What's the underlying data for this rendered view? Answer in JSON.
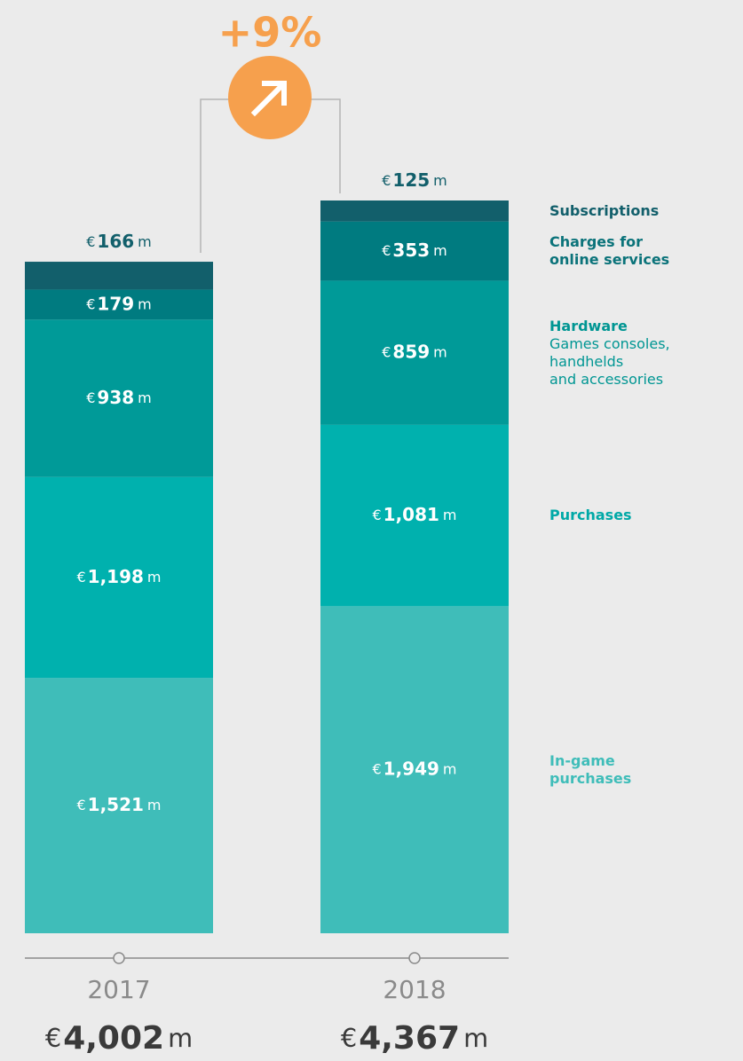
{
  "chart_data": {
    "type": "stacked_bar",
    "categories": [
      "2017",
      "2018"
    ],
    "currency": "€",
    "unit": "m",
    "change_label": "+9%",
    "series": [
      {
        "name": "In-game purchases",
        "color": "#3fbdb9",
        "text_color": "#3fbdb9",
        "values": [
          1521,
          1949
        ],
        "value_labels": [
          "1,521",
          "1,949"
        ]
      },
      {
        "name": "Purchases",
        "color": "#00b1ae",
        "text_color": "#00a9a7",
        "values": [
          1198,
          1081
        ],
        "value_labels": [
          "1,198",
          "1,081"
        ]
      },
      {
        "name": "Hardware",
        "description": [
          "Games consoles,",
          "handhelds",
          "and accessories"
        ],
        "color": "#009a98",
        "text_color": "#009693",
        "values": [
          938,
          859
        ],
        "value_labels": [
          "938",
          "859"
        ]
      },
      {
        "name": "Charges for online services",
        "color": "#007b80",
        "text_color": "#0b737a",
        "values": [
          179,
          353
        ],
        "value_labels": [
          "179",
          "353"
        ]
      },
      {
        "name": "Subscriptions",
        "color": "#125f6b",
        "text_color": "#125f6b",
        "values": [
          166,
          125
        ],
        "value_labels": [
          "166",
          "125"
        ]
      }
    ],
    "totals": [
      4002,
      4367
    ],
    "total_labels": [
      "4,002",
      "4,367"
    ]
  }
}
